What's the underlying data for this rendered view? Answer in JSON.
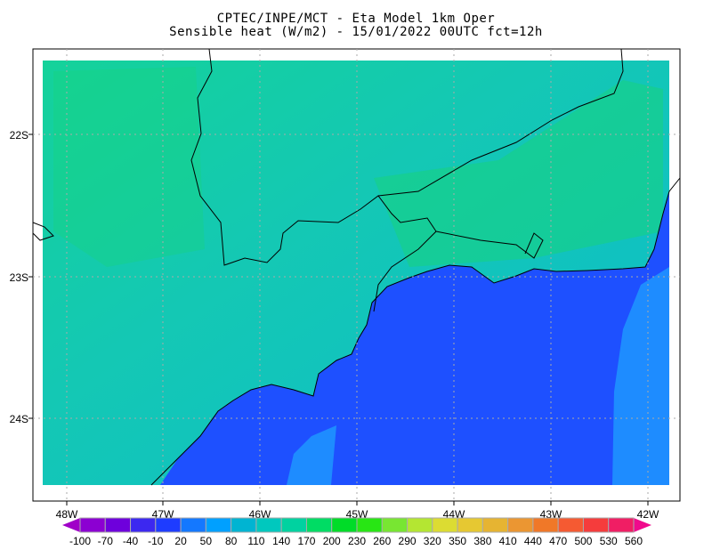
{
  "title": {
    "line1": "CPTEC/INPE/MCT -  Eta Model 1km Oper",
    "line2": "Sensible heat (W/m2) - 15/01/2022 00UTC fct=12h"
  },
  "map": {
    "lon_labels": [
      "48W",
      "47W",
      "46W",
      "45W",
      "44W",
      "43W",
      "42W"
    ],
    "lat_labels": [
      "22S",
      "23S",
      "24S"
    ],
    "land_color": "#14c8b0",
    "ocean_color": "#1e50ff",
    "offshore_color": "#1e8cff"
  },
  "colorbar": {
    "labels": [
      "-100",
      "-70",
      "-40",
      "-10",
      "20",
      "50",
      "80",
      "110",
      "140",
      "170",
      "200",
      "230",
      "260",
      "290",
      "320",
      "350",
      "380",
      "410",
      "440",
      "470",
      "500",
      "530",
      "560"
    ],
    "colors": [
      "#8c00d2",
      "#6e00dc",
      "#3c28f0",
      "#1e3cff",
      "#1478ff",
      "#00a0ff",
      "#00b4d2",
      "#00c8be",
      "#00d2a0",
      "#00dc64",
      "#00dc28",
      "#28e614",
      "#78e632",
      "#b4e632",
      "#dcdc32",
      "#e6c832",
      "#e6b432",
      "#eb9632",
      "#f07828",
      "#f55a32",
      "#f53c3c",
      "#f01e64"
    ],
    "left_arrow_color": "#a000c8",
    "right_arrow_color": "#f00a8c"
  }
}
